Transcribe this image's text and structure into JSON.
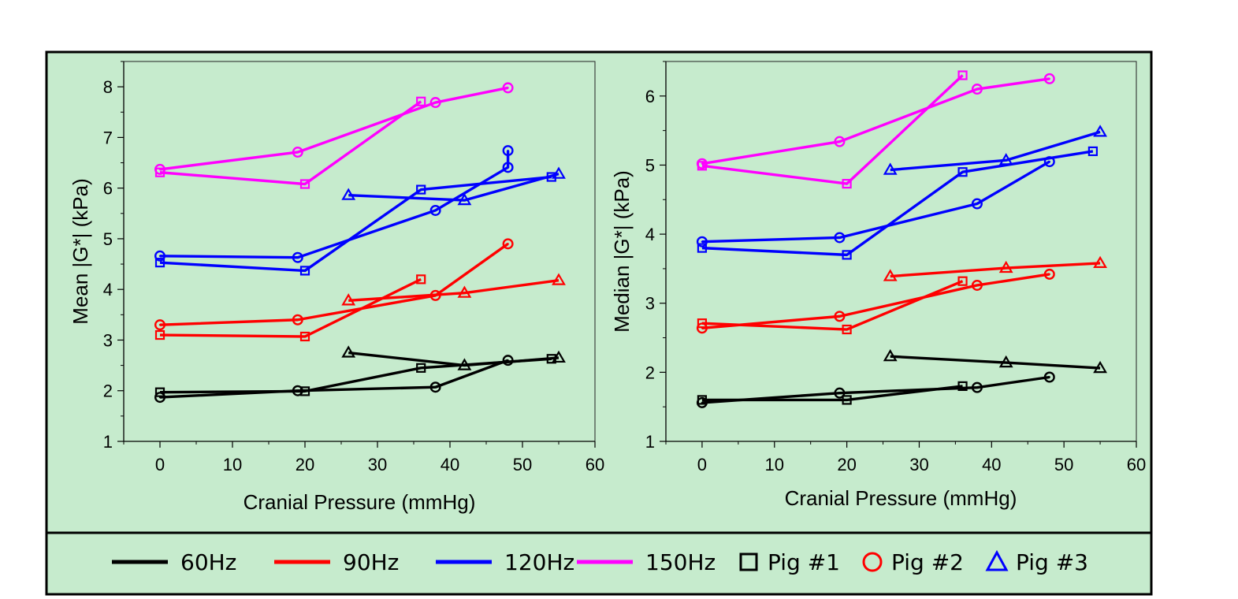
{
  "colors": {
    "background": "#c6ebcd",
    "frame": "#000000",
    "freq_60": "#000000",
    "freq_90": "#ff0000",
    "freq_120": "#0000ff",
    "freq_150": "#ff00ff"
  },
  "legend": {
    "items": [
      {
        "label": "60Hz",
        "kind": "line",
        "color": "#000000"
      },
      {
        "label": "90Hz",
        "kind": "line",
        "color": "#ff0000"
      },
      {
        "label": "120Hz",
        "kind": "line",
        "color": "#0000ff"
      },
      {
        "label": "150Hz",
        "kind": "line",
        "color": "#ff00ff"
      },
      {
        "label": "Pig #1",
        "kind": "marker",
        "marker": "square",
        "color": "#000000"
      },
      {
        "label": "Pig #2",
        "kind": "marker",
        "marker": "circle",
        "color": "#ff0000"
      },
      {
        "label": "Pig #3",
        "kind": "marker",
        "marker": "triangle",
        "color": "#0000ff"
      }
    ]
  },
  "chart_data": [
    {
      "type": "line",
      "title": "",
      "xlabel": "Cranial Pressure (mmHg)",
      "ylabel": "Mean |G*| (kPa)",
      "xlim": [
        -5,
        60
      ],
      "ylim": [
        1,
        8.5
      ],
      "xticks": [
        0,
        10,
        20,
        30,
        40,
        50,
        60
      ],
      "yticks": [
        1,
        2,
        3,
        4,
        5,
        6,
        7,
        8
      ],
      "grid": false,
      "series": [
        {
          "name": "60Hz Pig #1",
          "freq": "60Hz",
          "pig": "Pig #1",
          "color": "#000000",
          "marker": "square",
          "x": [
            0,
            20,
            36,
            54
          ],
          "y": [
            1.97,
            1.99,
            2.45,
            2.63
          ]
        },
        {
          "name": "60Hz Pig #2",
          "freq": "60Hz",
          "pig": "Pig #2",
          "color": "#000000",
          "marker": "circle",
          "x": [
            0,
            19,
            38,
            48
          ],
          "y": [
            1.87,
            2.0,
            2.07,
            2.6
          ]
        },
        {
          "name": "60Hz Pig #3",
          "freq": "60Hz",
          "pig": "Pig #3",
          "color": "#000000",
          "marker": "triangle",
          "x": [
            26,
            42,
            55
          ],
          "y": [
            2.75,
            2.5,
            2.65
          ]
        },
        {
          "name": "90Hz Pig #1",
          "freq": "90Hz",
          "pig": "Pig #1",
          "color": "#ff0000",
          "marker": "square",
          "x": [
            0,
            20,
            36
          ],
          "y": [
            3.1,
            3.07,
            4.2
          ]
        },
        {
          "name": "90Hz Pig #2",
          "freq": "90Hz",
          "pig": "Pig #2",
          "color": "#ff0000",
          "marker": "circle",
          "x": [
            0,
            19,
            38,
            48
          ],
          "y": [
            3.3,
            3.4,
            3.88,
            4.9
          ]
        },
        {
          "name": "90Hz Pig #3",
          "freq": "90Hz",
          "pig": "Pig #3",
          "color": "#ff0000",
          "marker": "triangle",
          "x": [
            26,
            42,
            55
          ],
          "y": [
            3.78,
            3.93,
            4.18
          ]
        },
        {
          "name": "120Hz Pig #1",
          "freq": "120Hz",
          "pig": "Pig #1",
          "color": "#0000ff",
          "marker": "square",
          "x": [
            0,
            20,
            36,
            54
          ],
          "y": [
            4.53,
            4.37,
            5.97,
            6.22
          ]
        },
        {
          "name": "120Hz Pig #2",
          "freq": "120Hz",
          "pig": "Pig #2",
          "color": "#0000ff",
          "marker": "circle",
          "x": [
            0,
            19,
            38,
            48,
            48
          ],
          "y": [
            4.66,
            4.63,
            5.56,
            6.41,
            6.74
          ]
        },
        {
          "name": "120Hz Pig #3",
          "freq": "120Hz",
          "pig": "Pig #3",
          "color": "#0000ff",
          "marker": "triangle",
          "x": [
            26,
            42,
            55
          ],
          "y": [
            5.86,
            5.76,
            6.28
          ]
        },
        {
          "name": "150Hz Pig #1",
          "freq": "150Hz",
          "pig": "Pig #1",
          "color": "#ff00ff",
          "marker": "square",
          "x": [
            0,
            20,
            36
          ],
          "y": [
            6.31,
            6.08,
            7.71
          ]
        },
        {
          "name": "150Hz Pig #2",
          "freq": "150Hz",
          "pig": "Pig #2",
          "color": "#ff00ff",
          "marker": "circle",
          "x": [
            0,
            19,
            38,
            48
          ],
          "y": [
            6.37,
            6.71,
            7.69,
            7.98
          ]
        }
      ]
    },
    {
      "type": "line",
      "title": "",
      "xlabel": "Cranial Pressure (mmHg)",
      "ylabel": "Median |G*| (kPa)",
      "xlim": [
        -5,
        60
      ],
      "ylim": [
        1,
        6.5
      ],
      "xticks": [
        0,
        10,
        20,
        30,
        40,
        50,
        60
      ],
      "yticks": [
        1,
        2,
        3,
        4,
        5,
        6
      ],
      "grid": false,
      "series": [
        {
          "name": "60Hz Pig #1",
          "freq": "60Hz",
          "pig": "Pig #1",
          "color": "#000000",
          "marker": "square",
          "x": [
            0,
            20,
            36
          ],
          "y": [
            1.6,
            1.6,
            1.8
          ]
        },
        {
          "name": "60Hz Pig #2",
          "freq": "60Hz",
          "pig": "Pig #2",
          "color": "#000000",
          "marker": "circle",
          "x": [
            0,
            19,
            38,
            48
          ],
          "y": [
            1.56,
            1.7,
            1.78,
            1.93
          ]
        },
        {
          "name": "60Hz Pig #3",
          "freq": "60Hz",
          "pig": "Pig #3",
          "color": "#000000",
          "marker": "triangle",
          "x": [
            26,
            42,
            55
          ],
          "y": [
            2.23,
            2.14,
            2.06
          ]
        },
        {
          "name": "90Hz Pig #1",
          "freq": "90Hz",
          "pig": "Pig #1",
          "color": "#ff0000",
          "marker": "square",
          "x": [
            0,
            20,
            36
          ],
          "y": [
            2.71,
            2.62,
            3.32
          ]
        },
        {
          "name": "90Hz Pig #2",
          "freq": "90Hz",
          "pig": "Pig #2",
          "color": "#ff0000",
          "marker": "circle",
          "x": [
            0,
            19,
            38,
            48
          ],
          "y": [
            2.64,
            2.81,
            3.26,
            3.42
          ]
        },
        {
          "name": "90Hz Pig #3",
          "freq": "90Hz",
          "pig": "Pig #3",
          "color": "#ff0000",
          "marker": "triangle",
          "x": [
            26,
            42,
            55
          ],
          "y": [
            3.39,
            3.51,
            3.58
          ]
        },
        {
          "name": "120Hz Pig #1",
          "freq": "120Hz",
          "pig": "Pig #1",
          "color": "#0000ff",
          "marker": "square",
          "x": [
            0,
            20,
            36,
            54
          ],
          "y": [
            3.8,
            3.7,
            4.9,
            5.2
          ]
        },
        {
          "name": "120Hz Pig #2",
          "freq": "120Hz",
          "pig": "Pig #2",
          "color": "#0000ff",
          "marker": "circle",
          "x": [
            0,
            19,
            38,
            48
          ],
          "y": [
            3.89,
            3.95,
            4.44,
            5.05
          ]
        },
        {
          "name": "120Hz Pig #3",
          "freq": "120Hz",
          "pig": "Pig #3",
          "color": "#0000ff",
          "marker": "triangle",
          "x": [
            26,
            42,
            55
          ],
          "y": [
            4.93,
            5.07,
            5.48
          ]
        },
        {
          "name": "150Hz Pig #1",
          "freq": "150Hz",
          "pig": "Pig #1",
          "color": "#ff00ff",
          "marker": "square",
          "x": [
            0,
            20,
            36
          ],
          "y": [
            4.99,
            4.73,
            6.3
          ]
        },
        {
          "name": "150Hz Pig #2",
          "freq": "150Hz",
          "pig": "Pig #2",
          "color": "#ff00ff",
          "marker": "circle",
          "x": [
            0,
            19,
            38,
            48
          ],
          "y": [
            5.02,
            5.34,
            6.1,
            6.25
          ]
        }
      ]
    }
  ]
}
